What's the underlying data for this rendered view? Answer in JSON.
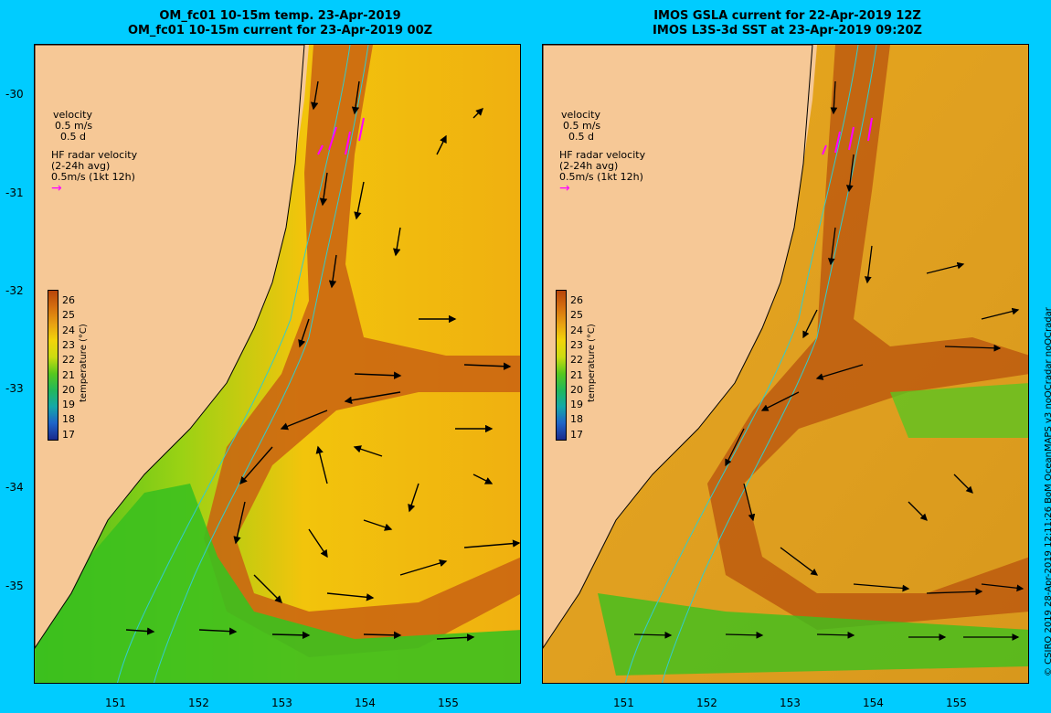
{
  "left_panel": {
    "title_line1": "OM_fc01 10-15m temp. 23-Apr-2019",
    "title_line2": "OM_fc01 10-15m current for 23-Apr-2019 00Z"
  },
  "right_panel": {
    "title_line1": "IMOS GSLA current for 22-Apr-2019 12Z",
    "title_line2": "IMOS L3S-3d SST at 23-Apr-2019 09:20Z"
  },
  "legend": {
    "velocity_label": "velocity",
    "velocity_scale": "0.5 m/s",
    "velocity_time": "0.5 d",
    "hf_label1": "HF radar velocity",
    "hf_label2": "(2-24h avg)",
    "hf_scale": "0.5m/s (1kt 12h)"
  },
  "colorbar": {
    "unit": "temperature (°C)",
    "ticks": [
      "26",
      "25",
      "24",
      "23",
      "22",
      "21",
      "20",
      "19",
      "18",
      "17"
    ],
    "colors": [
      "#b8460a",
      "#d56f0f",
      "#e8a012",
      "#f2d40a",
      "#ccdc10",
      "#58c81e",
      "#22b85a",
      "#14a8a8",
      "#1e64c8",
      "#1a2a8c"
    ]
  },
  "axes": {
    "lat_ticks": [
      "-30",
      "-31",
      "-32",
      "-33",
      "-34",
      "-35"
    ],
    "lon_ticks": [
      "151",
      "152",
      "153",
      "154",
      "155"
    ]
  },
  "credit": "© CSIRO 2019   28-Apr-2019 12:11:26 BoM OceanMAPS v3 noQCradar noQCradar"
}
